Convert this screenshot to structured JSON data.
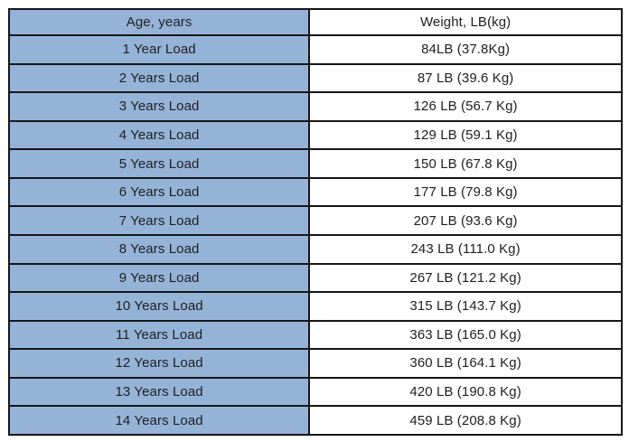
{
  "table": {
    "headers": [
      "Age, years",
      "Weight, LB(kg)"
    ],
    "rows": [
      {
        "age": "1 Year Load",
        "weight": "84LB (37.8Kg)"
      },
      {
        "age": "2 Years Load",
        "weight": "87 LB (39.6 Kg)"
      },
      {
        "age": "3 Years Load",
        "weight": "126 LB (56.7 Kg)"
      },
      {
        "age": "4 Years Load",
        "weight": "129 LB (59.1 Kg)"
      },
      {
        "age": "5 Years Load",
        "weight": "150 LB (67.8 Kg)"
      },
      {
        "age": "6 Years Load",
        "weight": "177 LB (79.8 Kg)"
      },
      {
        "age": "7 Years Load",
        "weight": "207 LB (93.6 Kg)"
      },
      {
        "age": "8 Years Load",
        "weight": "243 LB (111.0 Kg)"
      },
      {
        "age": "9 Years Load",
        "weight": "267 LB (121.2 Kg)"
      },
      {
        "age": "10 Years Load",
        "weight": "315 LB (143.7 Kg)"
      },
      {
        "age": "11 Years Load",
        "weight": "363 LB (165.0 Kg)"
      },
      {
        "age": "12 Years Load",
        "weight": "360 LB (164.1 Kg)"
      },
      {
        "age": "13 Years Load",
        "weight": "420 LB (190.8 Kg)"
      },
      {
        "age": "14 Years Load",
        "weight": "459 LB (208.8 Kg)"
      }
    ]
  },
  "colors": {
    "age_column_bg": "#95B3D7",
    "weight_column_bg": "#FFFFFF",
    "border": "#161616",
    "text": "#1F1F1F",
    "page_bg": "#FFFFFF"
  }
}
